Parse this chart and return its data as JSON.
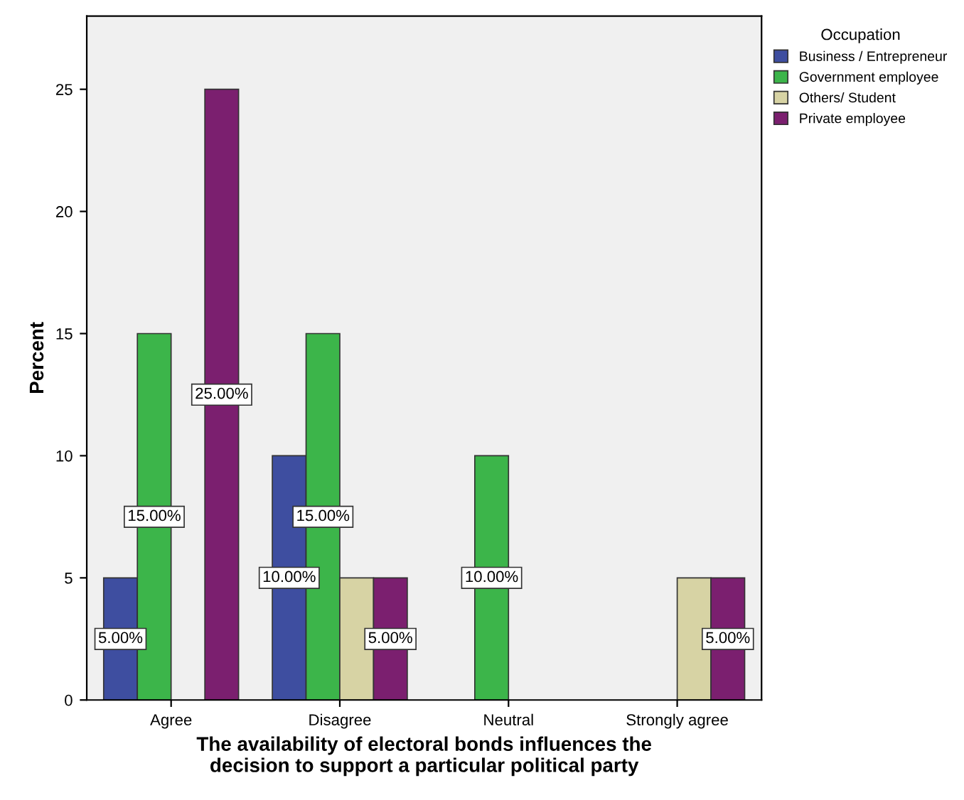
{
  "chart_data": {
    "type": "bar",
    "xlabel": "The availability of electoral bonds influences the\ndecision to support a particular political party",
    "ylabel": "Percent",
    "legend_title": "Occupation",
    "legend": "top right",
    "grid": false,
    "categories": [
      "Agree",
      "Disagree",
      "Neutral",
      "Strongly agree"
    ],
    "ylim": [
      0,
      28
    ],
    "yticks": [
      0,
      5,
      10,
      15,
      20,
      25
    ],
    "series": [
      {
        "name": "Business / Entrepreneur",
        "color": "#3e4ea0",
        "values": [
          5,
          10,
          null,
          null
        ],
        "value_labels": [
          "5.00%",
          "10.00%",
          null,
          null
        ]
      },
      {
        "name": "Government employee",
        "color": "#3cb54a",
        "values": [
          15,
          15,
          10,
          null
        ],
        "value_labels": [
          "15.00%",
          "15.00%",
          "10.00%",
          null
        ]
      },
      {
        "name": "Others/ Student",
        "color": "#d7d3a4",
        "values": [
          null,
          5,
          null,
          5
        ],
        "value_labels": [
          null,
          null,
          null,
          null
        ]
      },
      {
        "name": "Private employee",
        "color": "#7b1f6f",
        "values": [
          25,
          5,
          null,
          5
        ],
        "value_labels": [
          "25.00%",
          "5.00%",
          null,
          "5.00%"
        ]
      }
    ]
  }
}
